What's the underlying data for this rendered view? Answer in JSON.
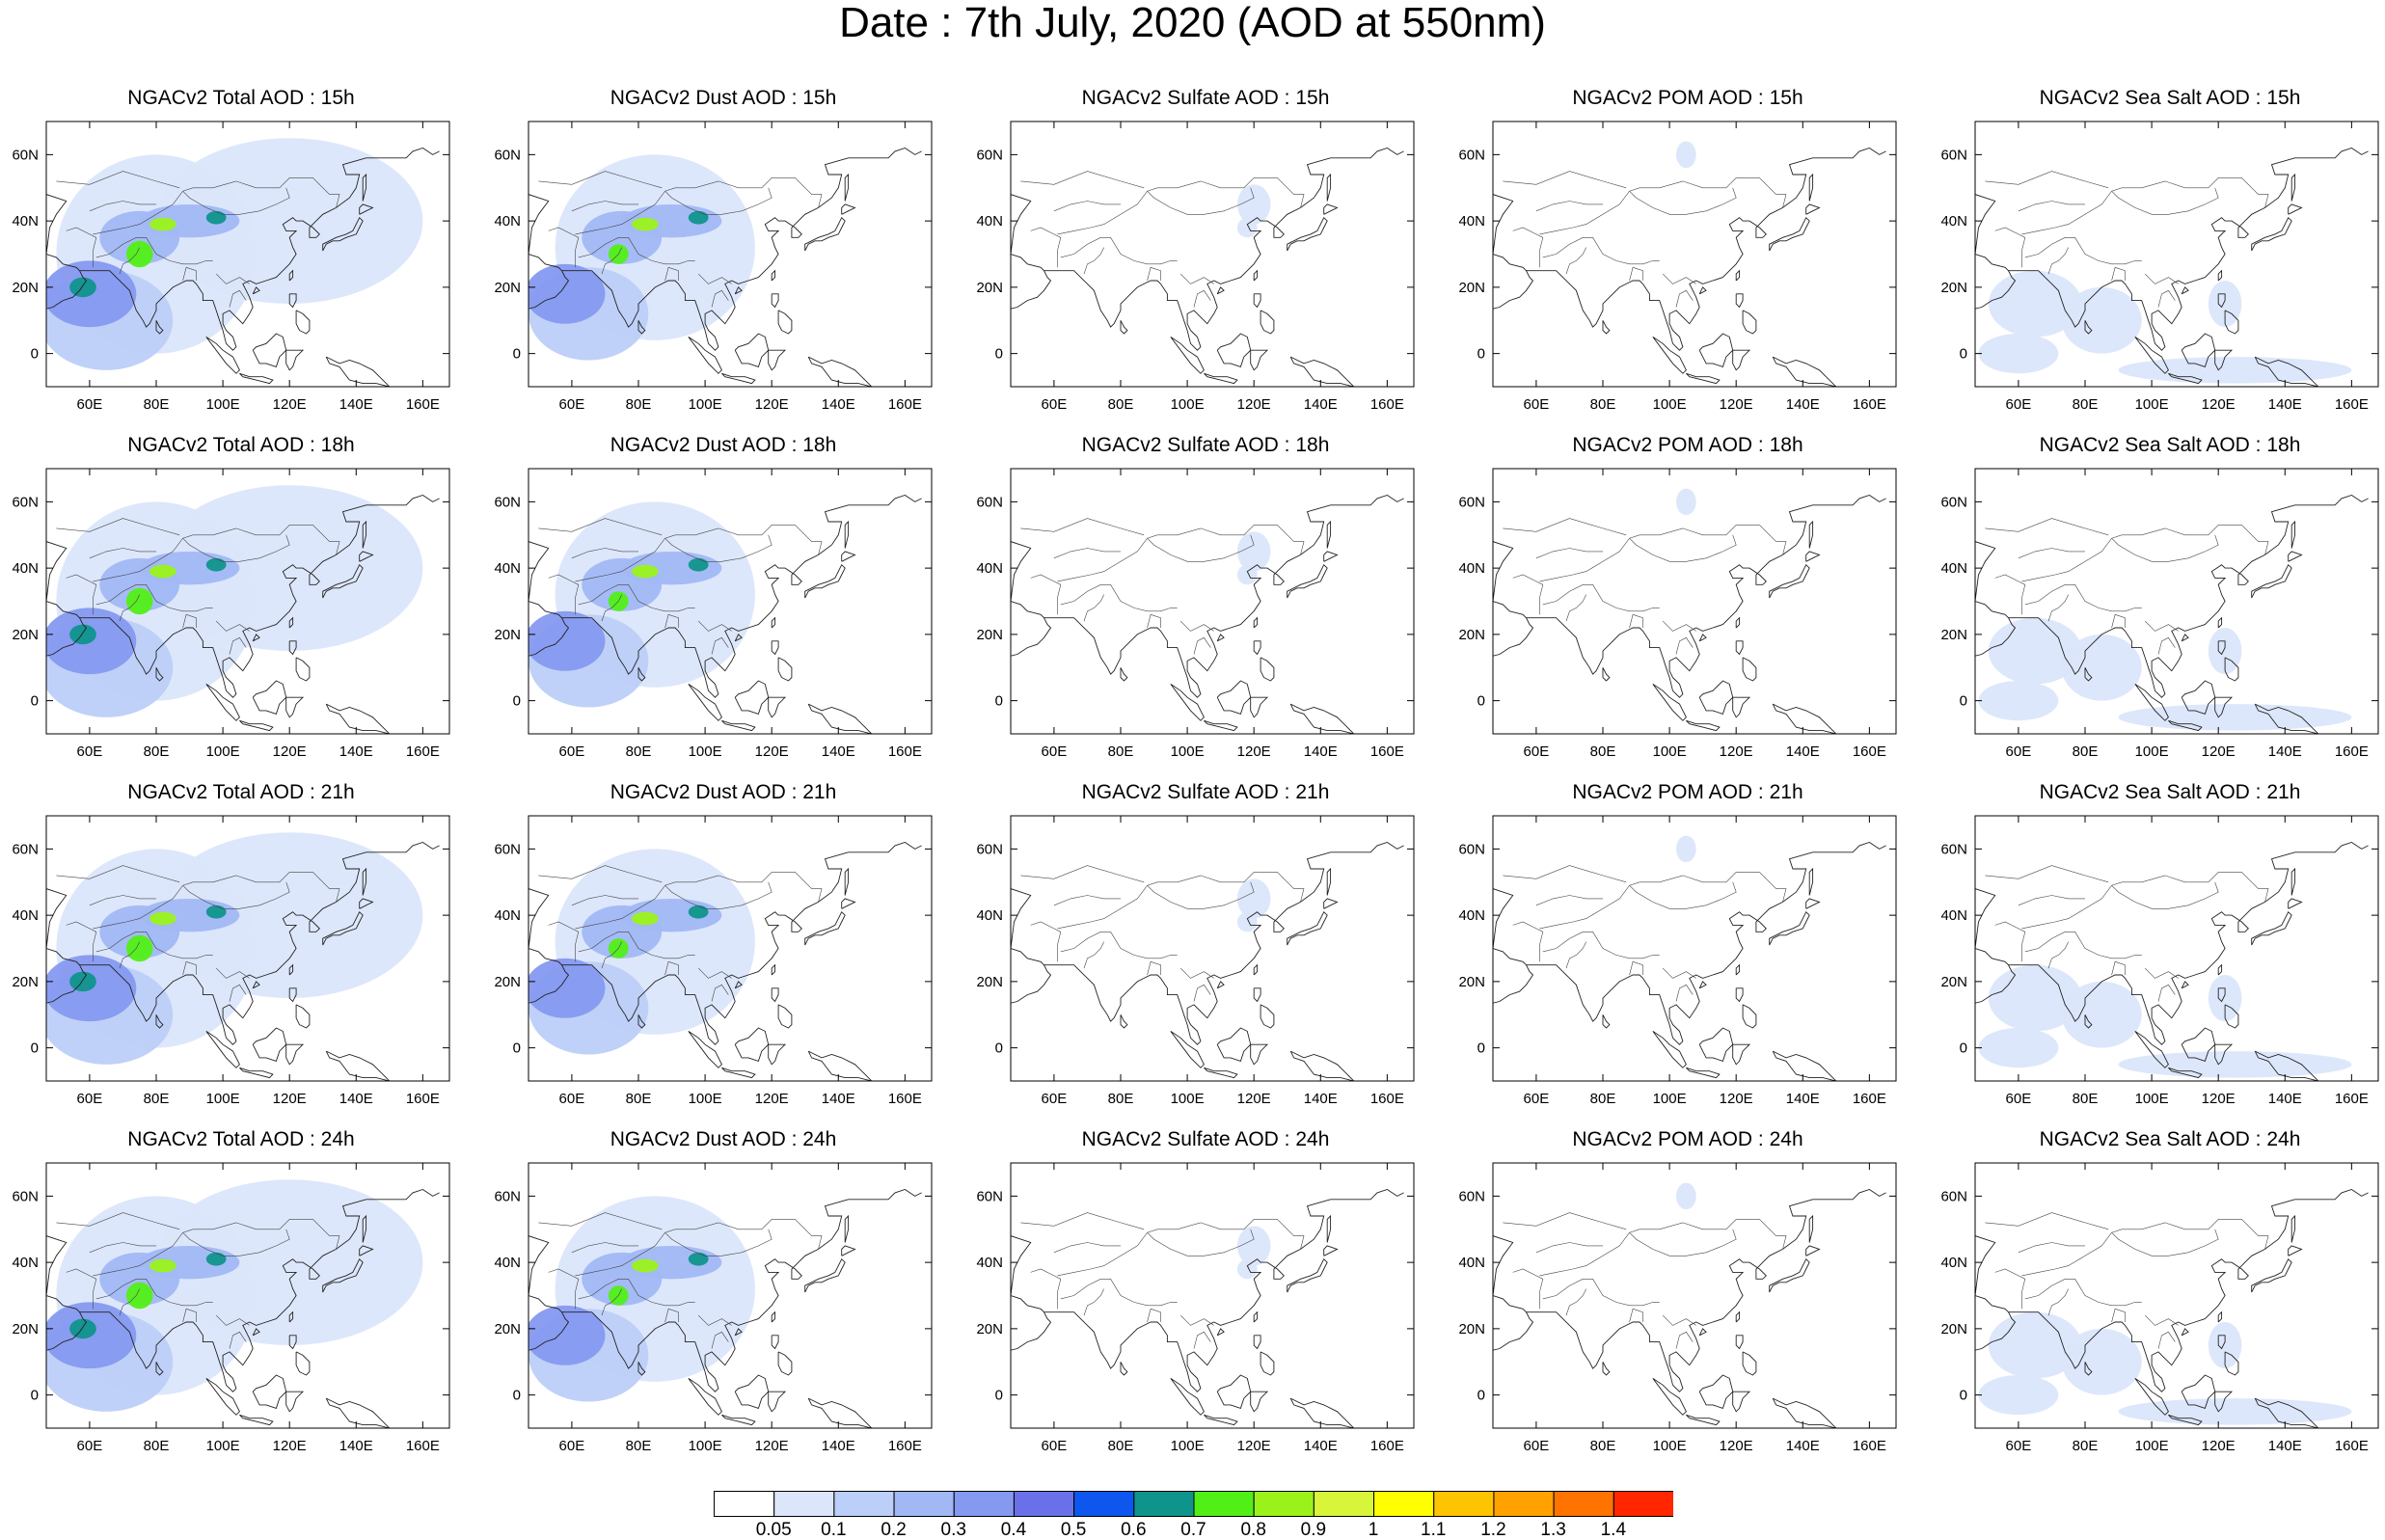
{
  "title": "Date : 7th July, 2020 (AOD at 550nm)",
  "axes": {
    "lon_ticks": [
      "60E",
      "80E",
      "100E",
      "120E",
      "140E",
      "160E"
    ],
    "lat_ticks": [
      "60N",
      "40N",
      "20N",
      "0"
    ],
    "lon_range": [
      47,
      168
    ],
    "lat_range": [
      -10,
      70
    ]
  },
  "panels": [
    [
      {
        "title": "NGACv2 Total AOD : 15h",
        "field": "total"
      },
      {
        "title": "NGACv2 Dust AOD : 15h",
        "field": "dust"
      },
      {
        "title": "NGACv2 Sulfate AOD : 15h",
        "field": "sulfate"
      },
      {
        "title": "NGACv2 POM AOD : 15h",
        "field": "pom"
      },
      {
        "title": "NGACv2 Sea Salt AOD : 15h",
        "field": "seasalt"
      }
    ],
    [
      {
        "title": "NGACv2 Total AOD : 18h",
        "field": "total"
      },
      {
        "title": "NGACv2 Dust AOD : 18h",
        "field": "dust"
      },
      {
        "title": "NGACv2 Sulfate AOD : 18h",
        "field": "sulfate"
      },
      {
        "title": "NGACv2 POM AOD : 18h",
        "field": "pom"
      },
      {
        "title": "NGACv2 Sea Salt AOD : 18h",
        "field": "seasalt"
      }
    ],
    [
      {
        "title": "NGACv2 Total AOD : 21h",
        "field": "total"
      },
      {
        "title": "NGACv2 Dust AOD : 21h",
        "field": "dust"
      },
      {
        "title": "NGACv2 Sulfate AOD : 21h",
        "field": "sulfate"
      },
      {
        "title": "NGACv2 POM AOD : 21h",
        "field": "pom"
      },
      {
        "title": "NGACv2 Sea Salt AOD : 21h",
        "field": "seasalt"
      }
    ],
    [
      {
        "title": "NGACv2 Total AOD : 24h",
        "field": "total"
      },
      {
        "title": "NGACv2 Dust AOD : 24h",
        "field": "dust"
      },
      {
        "title": "NGACv2 Sulfate AOD : 24h",
        "field": "sulfate"
      },
      {
        "title": "NGACv2 POM AOD : 24h",
        "field": "pom"
      },
      {
        "title": "NGACv2 Sea Salt  AOD : 24h",
        "field": "seasalt"
      }
    ]
  ],
  "colorbar": {
    "labels": [
      "0.05",
      "0.1",
      "0.2",
      "0.3",
      "0.4",
      "0.5",
      "0.6",
      "0.7",
      "0.8",
      "0.9",
      "1",
      "1.1",
      "1.2",
      "1.3",
      "1.4"
    ],
    "colors": [
      "#ffffff",
      "#dbe6fb",
      "#bccff8",
      "#a1b8f5",
      "#8599f0",
      "#6a70ea",
      "#0d56ee",
      "#0f948c",
      "#52ef17",
      "#9bf21a",
      "#d8f539",
      "#ffff00",
      "#ffc400",
      "#ffa200",
      "#ff7300",
      "#ff2600"
    ]
  },
  "fields": {
    "total": [
      {
        "lon": 60,
        "lat": 18,
        "rlon": 14,
        "rlat": 10,
        "level": 4
      },
      {
        "lon": 58,
        "lat": 20,
        "rlon": 4,
        "rlat": 3,
        "level": 7
      },
      {
        "lon": 75,
        "lat": 30,
        "rlon": 4,
        "rlat": 4,
        "level": 8
      },
      {
        "lon": 82,
        "lat": 39,
        "rlon": 4,
        "rlat": 2,
        "level": 9
      },
      {
        "lon": 98,
        "lat": 41,
        "rlon": 3,
        "rlat": 2,
        "level": 7
      },
      {
        "lon": 75,
        "lat": 35,
        "rlon": 12,
        "rlat": 8,
        "level": 3
      },
      {
        "lon": 90,
        "lat": 40,
        "rlon": 15,
        "rlat": 5,
        "level": 3
      },
      {
        "lon": 80,
        "lat": 30,
        "rlon": 30,
        "rlat": 30,
        "level": 1
      },
      {
        "lon": 120,
        "lat": 40,
        "rlon": 40,
        "rlat": 25,
        "level": 1
      },
      {
        "lon": 65,
        "lat": 10,
        "rlon": 20,
        "rlat": 15,
        "level": 2
      }
    ],
    "dust": [
      {
        "lon": 58,
        "lat": 18,
        "rlon": 12,
        "rlat": 9,
        "level": 4
      },
      {
        "lon": 74,
        "lat": 30,
        "rlon": 3,
        "rlat": 3,
        "level": 8
      },
      {
        "lon": 82,
        "lat": 39,
        "rlon": 4,
        "rlat": 2,
        "level": 9
      },
      {
        "lon": 98,
        "lat": 41,
        "rlon": 3,
        "rlat": 2,
        "level": 7
      },
      {
        "lon": 75,
        "lat": 35,
        "rlon": 12,
        "rlat": 8,
        "level": 3
      },
      {
        "lon": 90,
        "lat": 40,
        "rlon": 15,
        "rlat": 5,
        "level": 3
      },
      {
        "lon": 85,
        "lat": 32,
        "rlon": 30,
        "rlat": 28,
        "level": 1
      },
      {
        "lon": 65,
        "lat": 12,
        "rlon": 18,
        "rlat": 14,
        "level": 2
      }
    ],
    "sulfate": [
      {
        "lon": 120,
        "lat": 45,
        "rlon": 5,
        "rlat": 6,
        "level": 1
      },
      {
        "lon": 118,
        "lat": 38,
        "rlon": 3,
        "rlat": 3,
        "level": 1
      }
    ],
    "pom": [
      {
        "lon": 105,
        "lat": 60,
        "rlon": 3,
        "rlat": 4,
        "level": 1
      }
    ],
    "seasalt": [
      {
        "lon": 65,
        "lat": 15,
        "rlon": 14,
        "rlat": 10,
        "level": 1
      },
      {
        "lon": 85,
        "lat": 10,
        "rlon": 12,
        "rlat": 10,
        "level": 1
      },
      {
        "lon": 122,
        "lat": 15,
        "rlon": 5,
        "rlat": 7,
        "level": 1
      },
      {
        "lon": 125,
        "lat": -5,
        "rlon": 35,
        "rlat": 4,
        "level": 1
      },
      {
        "lon": 60,
        "lat": 0,
        "rlon": 12,
        "rlat": 6,
        "level": 1
      }
    ]
  }
}
